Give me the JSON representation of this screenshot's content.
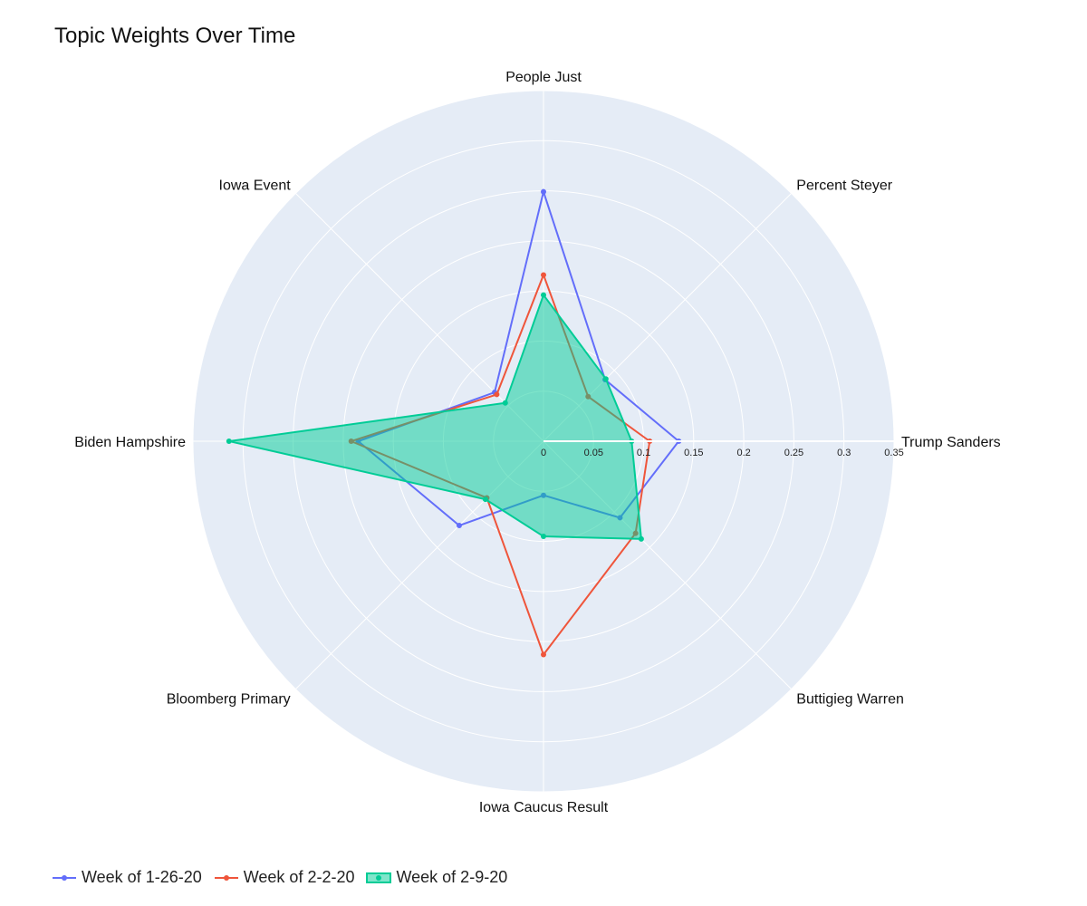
{
  "chart_data": {
    "type": "radar",
    "title": "Topic Weights Over Time",
    "categories": [
      "Trump Sanders",
      "Percent Steyer",
      "People Just",
      "Iowa Event",
      "Biden Hampshire",
      "Bloomberg Primary",
      "Iowa Caucus Result",
      "Buttigieg Warren"
    ],
    "radial_range": [
      0,
      0.35
    ],
    "radial_ticks": [
      0,
      0.05,
      0.1,
      0.15,
      0.2,
      0.25,
      0.3,
      0.35
    ],
    "radial_tick_labels": [
      "0",
      "0.05",
      "0.1",
      "0.15",
      "0.2",
      "0.25",
      "0.3",
      "0.35"
    ],
    "grid": true,
    "legend_position": "bottom-left",
    "series": [
      {
        "name": "Week of 1-26-20",
        "color": "#636efa",
        "fill": false,
        "values": [
          0.135,
          0.087,
          0.249,
          0.069,
          0.185,
          0.119,
          0.054,
          0.108
        ]
      },
      {
        "name": "Week of 2-2-20",
        "color": "#ef553b",
        "fill": false,
        "values": [
          0.106,
          0.063,
          0.166,
          0.066,
          0.192,
          0.08,
          0.213,
          0.13
        ]
      },
      {
        "name": "Week of 2-9-20",
        "color": "#00cc96",
        "fill": true,
        "values": [
          0.088,
          0.088,
          0.146,
          0.054,
          0.314,
          0.082,
          0.095,
          0.138
        ]
      }
    ]
  },
  "legend": {
    "items": [
      "Week of 1-26-20",
      "Week of 2-2-20",
      "Week of 2-9-20"
    ]
  }
}
